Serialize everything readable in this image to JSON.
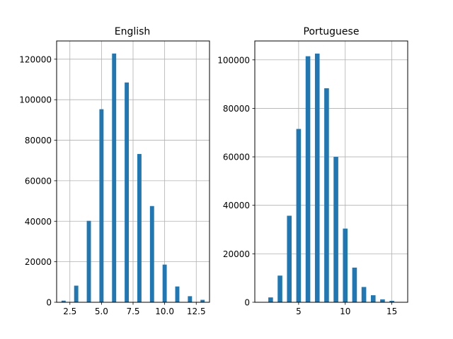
{
  "chart_data": [
    {
      "type": "bar",
      "title": "English",
      "xlabel": "",
      "ylabel": "",
      "grid": true,
      "xlim": [
        1.45,
        13.55
      ],
      "ylim": [
        0,
        129000
      ],
      "x_ticks": [
        2.5,
        5.0,
        7.5,
        10.0,
        12.5
      ],
      "x_tick_labels": [
        "2.5",
        "5.0",
        "7.5",
        "10.0",
        "12.5"
      ],
      "y_ticks": [
        0,
        20000,
        40000,
        60000,
        80000,
        100000,
        120000
      ],
      "y_tick_labels": [
        "0",
        "20000",
        "40000",
        "60000",
        "80000",
        "100000",
        "120000"
      ],
      "bar_width": 0.33,
      "x": [
        2,
        3,
        4,
        5,
        6,
        7,
        8,
        9,
        10,
        11,
        12,
        13
      ],
      "values": [
        800,
        8200,
        40200,
        95300,
        122800,
        108500,
        73200,
        47500,
        18600,
        7800,
        3000,
        1200
      ],
      "color": "#1f77b4"
    },
    {
      "type": "bar",
      "title": "Portuguese",
      "xlabel": "",
      "ylabel": "",
      "grid": true,
      "xlim": [
        0.3,
        16.7
      ],
      "ylim": [
        0,
        107800
      ],
      "x_ticks": [
        5,
        10,
        15
      ],
      "x_tick_labels": [
        "5",
        "10",
        "15"
      ],
      "y_ticks": [
        0,
        20000,
        40000,
        60000,
        80000,
        100000
      ],
      "y_tick_labels": [
        "0",
        "20000",
        "40000",
        "60000",
        "80000",
        "100000"
      ],
      "bar_width": 0.5,
      "x": [
        2,
        3,
        4,
        5,
        6,
        7,
        8,
        9,
        10,
        11,
        12,
        13,
        14,
        15
      ],
      "values": [
        2000,
        11000,
        35700,
        71500,
        101500,
        102600,
        88300,
        60000,
        30400,
        14300,
        6300,
        2900,
        1200,
        600
      ],
      "color": "#1f77b4"
    }
  ]
}
